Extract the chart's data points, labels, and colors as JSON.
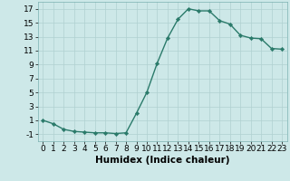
{
  "x": [
    0,
    1,
    2,
    3,
    4,
    5,
    6,
    7,
    8,
    9,
    10,
    11,
    12,
    13,
    14,
    15,
    16,
    17,
    18,
    19,
    20,
    21,
    22,
    23
  ],
  "y": [
    1,
    0.5,
    -0.3,
    -0.6,
    -0.7,
    -0.8,
    -0.8,
    -0.9,
    -0.8,
    2.0,
    5.0,
    9.2,
    12.8,
    15.5,
    17.0,
    16.7,
    16.7,
    15.3,
    14.8,
    13.2,
    12.8,
    12.7,
    11.3,
    11.2
  ],
  "line_color": "#2a7a6a",
  "marker": "D",
  "marker_size": 2.2,
  "bg_color": "#cde8e8",
  "grid_color": "#b0d0d0",
  "xlabel": "Humidex (Indice chaleur)",
  "xlim": [
    -0.5,
    23.5
  ],
  "ylim": [
    -2,
    18
  ],
  "yticks": [
    -1,
    1,
    3,
    5,
    7,
    9,
    11,
    13,
    15,
    17
  ],
  "xticks": [
    0,
    1,
    2,
    3,
    4,
    5,
    6,
    7,
    8,
    9,
    10,
    11,
    12,
    13,
    14,
    15,
    16,
    17,
    18,
    19,
    20,
    21,
    22,
    23
  ],
  "xlabel_fontsize": 7.5,
  "tick_fontsize": 6.5,
  "line_width": 1.0
}
